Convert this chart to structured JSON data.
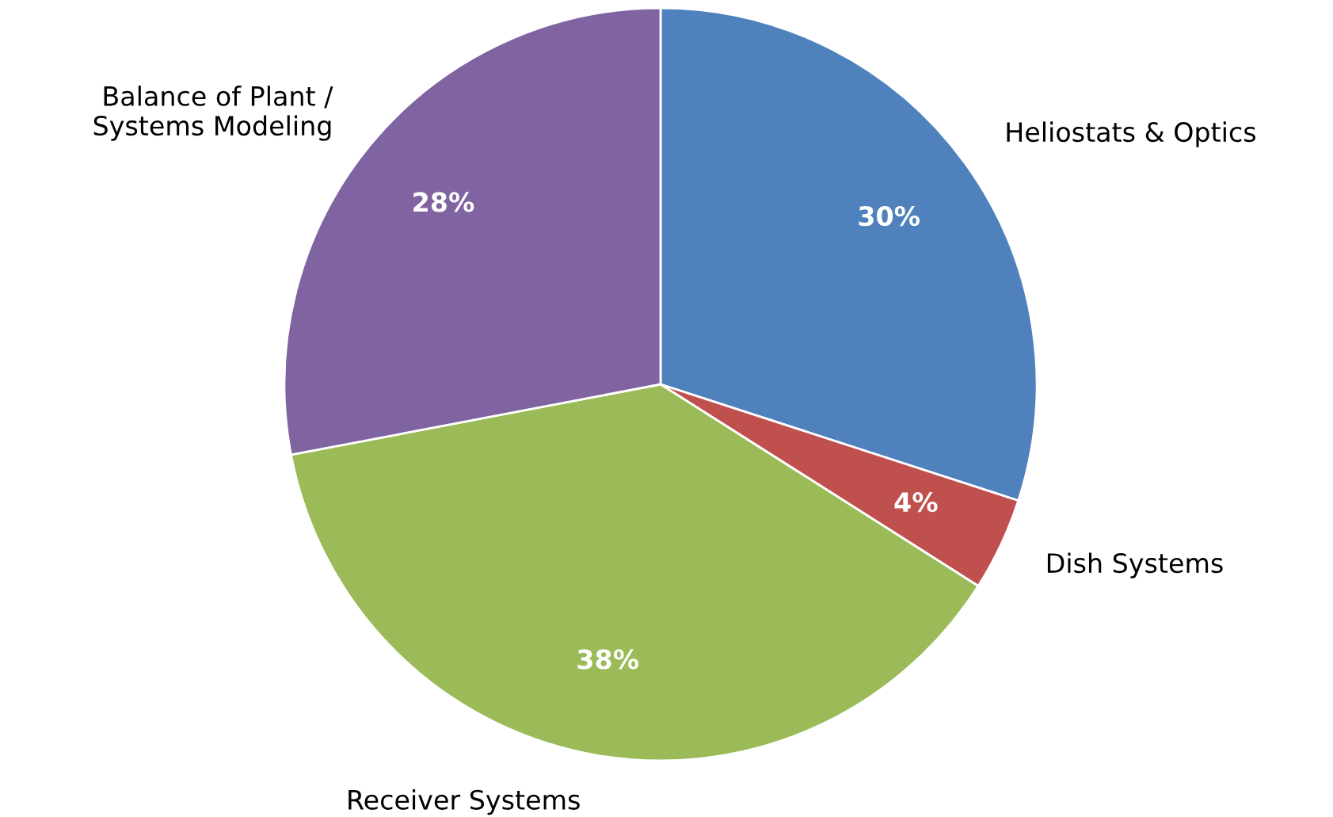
{
  "chart_data": {
    "type": "pie",
    "categories": [
      "Heliostats & Optics",
      "Dish Systems",
      "Receiver Systems",
      "Balance of Plant /\nSystems Modeling"
    ],
    "values": [
      30,
      4,
      38,
      28
    ],
    "colors": [
      "#4f81bd",
      "#c0504d",
      "#9bbb59",
      "#8064a2"
    ],
    "value_labels": [
      "30%",
      "4%",
      "38%",
      "28%"
    ]
  }
}
